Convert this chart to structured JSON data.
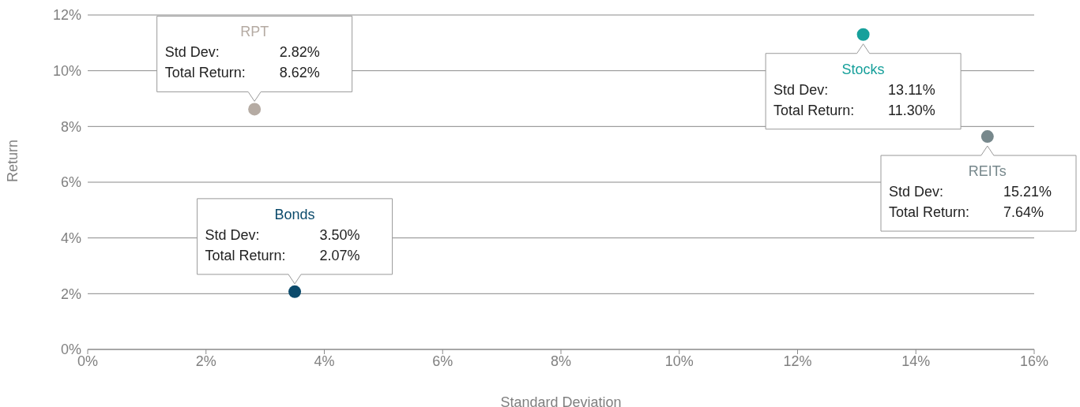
{
  "chart_data": {
    "type": "scatter",
    "xlabel": "Standard Deviation",
    "ylabel": "Return",
    "series": [
      {
        "name": "RPT",
        "color": "#b5aba3",
        "x": [
          2.82
        ],
        "values": [
          8.62
        ]
      },
      {
        "name": "Stocks",
        "color": "#17a09b",
        "x": [
          13.11
        ],
        "values": [
          11.3
        ]
      },
      {
        "name": "Bonds",
        "color": "#0b4a6b",
        "x": [
          3.5
        ],
        "values": [
          2.07
        ]
      },
      {
        "name": "REITs",
        "color": "#77888c",
        "x": [
          15.21
        ],
        "values": [
          7.64
        ]
      }
    ],
    "annotations": [
      "Std Dev:",
      "Total Return:",
      "2.82%",
      "8.62%",
      "13.11%",
      "11.30%",
      "3.50%",
      "2.07%",
      "15.21%",
      "7.64%"
    ],
    "xlim": [
      0,
      16
    ],
    "xticks": [
      {
        "value": 0,
        "label": "0%"
      },
      {
        "value": 2,
        "label": "2%"
      },
      {
        "value": 4,
        "label": "4%"
      },
      {
        "value": 6,
        "label": "6%"
      },
      {
        "value": 8,
        "label": "8%"
      },
      {
        "value": 10,
        "label": "10%"
      },
      {
        "value": 12,
        "label": "12%"
      },
      {
        "value": 14,
        "label": "14%"
      },
      {
        "value": 16,
        "label": "16%"
      }
    ],
    "ylim": [
      0,
      12
    ],
    "yticks": [
      {
        "value": 0,
        "label": "0%"
      },
      {
        "value": 2,
        "label": "2%"
      },
      {
        "value": 4,
        "label": "4%"
      },
      {
        "value": 6,
        "label": "6%"
      },
      {
        "value": 8,
        "label": "8%"
      },
      {
        "value": 10,
        "label": "10%"
      },
      {
        "value": 12,
        "label": "12%"
      }
    ],
    "grid": "y",
    "legend": false,
    "marker": "circle"
  }
}
